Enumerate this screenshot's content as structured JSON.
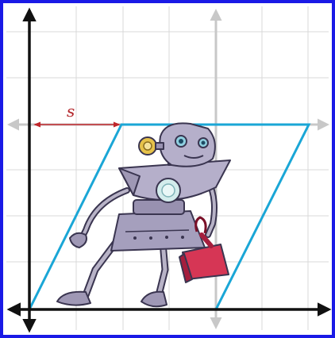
{
  "diagram": {
    "shear_label": "s",
    "colors": {
      "frame": "#1a1ae6",
      "grid": "#d9d9d9",
      "axis": "#111111",
      "ghost_axis": "#c8c8c8",
      "parallelogram": "#1aa6d6",
      "shear_arrow": "#c0262b"
    },
    "figure": "robot-with-dustpan"
  }
}
